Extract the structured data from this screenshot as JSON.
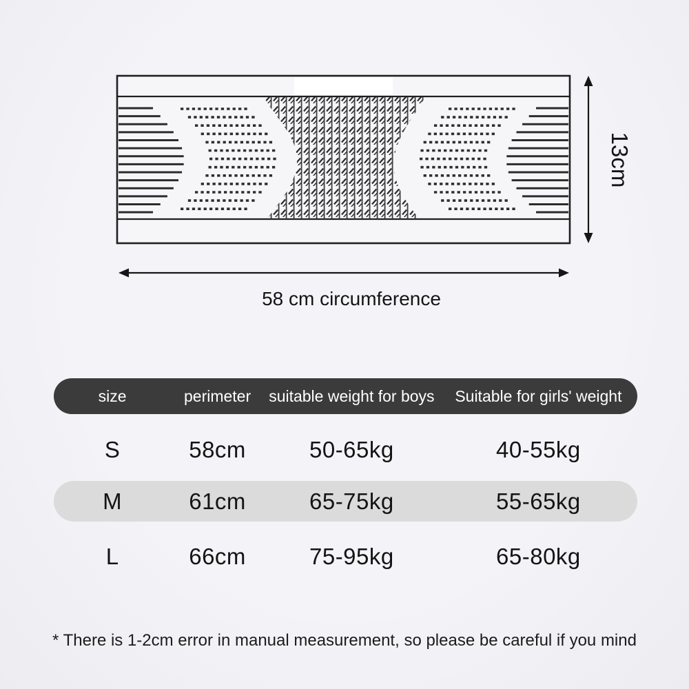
{
  "diagram": {
    "height_label": "13cm",
    "circumference_label": "58 cm circumference"
  },
  "size_chart": {
    "columns": [
      "size",
      "perimeter",
      "suitable weight for boys",
      "Suitable for girls' weight"
    ],
    "rows": [
      {
        "size": "S",
        "perimeter": "58cm",
        "boys_weight": "50-65kg",
        "girls_weight": "40-55kg"
      },
      {
        "size": "M",
        "perimeter": "61cm",
        "boys_weight": "65-75kg",
        "girls_weight": "55-65kg"
      },
      {
        "size": "L",
        "perimeter": "66cm",
        "boys_weight": "75-95kg",
        "girls_weight": "65-80kg"
      }
    ],
    "highlighted_row": "M"
  },
  "footnote": "* There is 1-2cm error in manual measurement, so please be careful if you mind",
  "colors": {
    "background": "#f2f2f6",
    "header_background": "#3b3b3b",
    "header_text": "#ffffff",
    "highlight_row_background": "#dbdbdb",
    "ink": "#1a1a1a"
  }
}
